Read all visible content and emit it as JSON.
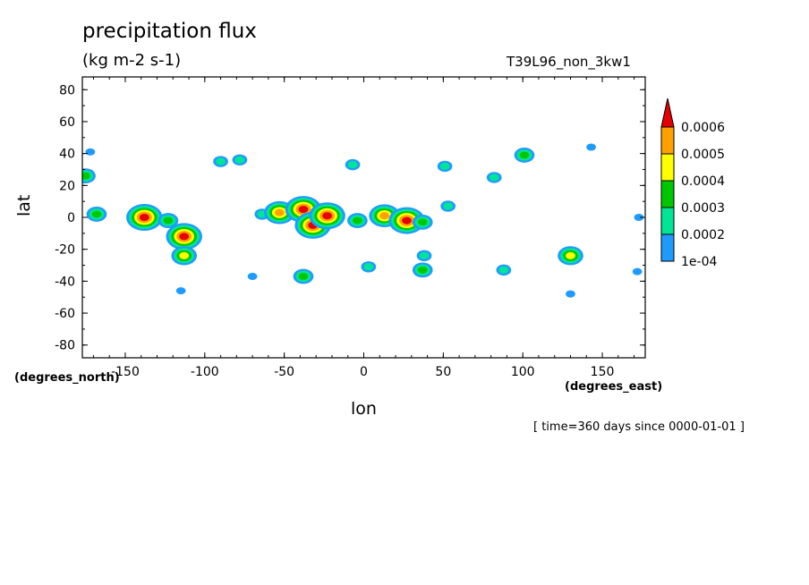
{
  "chart_data": {
    "type": "heatmap",
    "title": "precipitation flux",
    "units": "(kg m-2 s-1)",
    "run_label": "T39L96_non_3kw1",
    "xlabel": "lon",
    "ylabel": "lat",
    "x_note": "(degrees_north)",
    "y_note": "(degrees_east)",
    "time_note": "[ time=360 days since 0000-01-01 ]",
    "xlim": [
      -177,
      177
    ],
    "ylim": [
      -88,
      88
    ],
    "x_ticks": [
      -150,
      -100,
      -50,
      0,
      50,
      100,
      150
    ],
    "x_tick_labels": [
      "-150",
      "-100",
      "-50",
      "0",
      "50",
      "100",
      "150"
    ],
    "y_ticks": [
      80,
      60,
      40,
      20,
      0,
      -20,
      -40,
      -60,
      -80
    ],
    "y_tick_labels": [
      "80",
      "60",
      "40",
      "20",
      "0",
      "-20",
      "-40",
      "-60",
      "-80"
    ],
    "colorbar": {
      "levels": [
        0.0001,
        0.0002,
        0.0003,
        0.0004,
        0.0005,
        0.0006
      ],
      "labels": [
        "1e-04",
        "0.0002",
        "0.0003",
        "0.0004",
        "0.0005",
        "0.0006"
      ],
      "colors": [
        "#1e9bff",
        "#00e696",
        "#00c800",
        "#ffff00",
        "#ffa000",
        "#e60000"
      ]
    },
    "cells": [
      {
        "lon": -168,
        "lat": 2,
        "level": 3
      },
      {
        "lon": -175,
        "lat": 26,
        "level": 3
      },
      {
        "lon": -172,
        "lat": 41,
        "level": 1
      },
      {
        "lon": -138,
        "lat": 0,
        "level": 6
      },
      {
        "lon": -123,
        "lat": -2,
        "level": 3
      },
      {
        "lon": -113,
        "lat": -12,
        "level": 6
      },
      {
        "lon": -113,
        "lat": -24,
        "level": 4
      },
      {
        "lon": -115,
        "lat": -46,
        "level": 1
      },
      {
        "lon": -90,
        "lat": 35,
        "level": 2
      },
      {
        "lon": -78,
        "lat": 36,
        "level": 2
      },
      {
        "lon": -64,
        "lat": 2,
        "level": 2
      },
      {
        "lon": -53,
        "lat": 3,
        "level": 5
      },
      {
        "lon": -38,
        "lat": 5,
        "level": 6
      },
      {
        "lon": -32,
        "lat": -5,
        "level": 6
      },
      {
        "lon": -23,
        "lat": 1,
        "level": 6
      },
      {
        "lon": -4,
        "lat": -2,
        "level": 3
      },
      {
        "lon": 13,
        "lat": 1,
        "level": 5
      },
      {
        "lon": 27,
        "lat": -2,
        "level": 6
      },
      {
        "lon": 37,
        "lat": -3,
        "level": 3
      },
      {
        "lon": -7,
        "lat": 33,
        "level": 2
      },
      {
        "lon": -38,
        "lat": -37,
        "level": 3
      },
      {
        "lon": 3,
        "lat": -31,
        "level": 2
      },
      {
        "lon": 37,
        "lat": -33,
        "level": 3
      },
      {
        "lon": 38,
        "lat": -24,
        "level": 2
      },
      {
        "lon": 53,
        "lat": 7,
        "level": 2
      },
      {
        "lon": 51,
        "lat": 32,
        "level": 2
      },
      {
        "lon": 82,
        "lat": 25,
        "level": 2
      },
      {
        "lon": 101,
        "lat": 39,
        "level": 3
      },
      {
        "lon": 88,
        "lat": -33,
        "level": 2
      },
      {
        "lon": 130,
        "lat": -24,
        "level": 4
      },
      {
        "lon": 143,
        "lat": 44,
        "level": 1
      },
      {
        "lon": 172,
        "lat": -34,
        "level": 1
      },
      {
        "lon": -70,
        "lat": -37,
        "level": 1
      },
      {
        "lon": 130,
        "lat": -48,
        "level": 1
      },
      {
        "lon": 173,
        "lat": 0,
        "level": 1
      }
    ]
  }
}
